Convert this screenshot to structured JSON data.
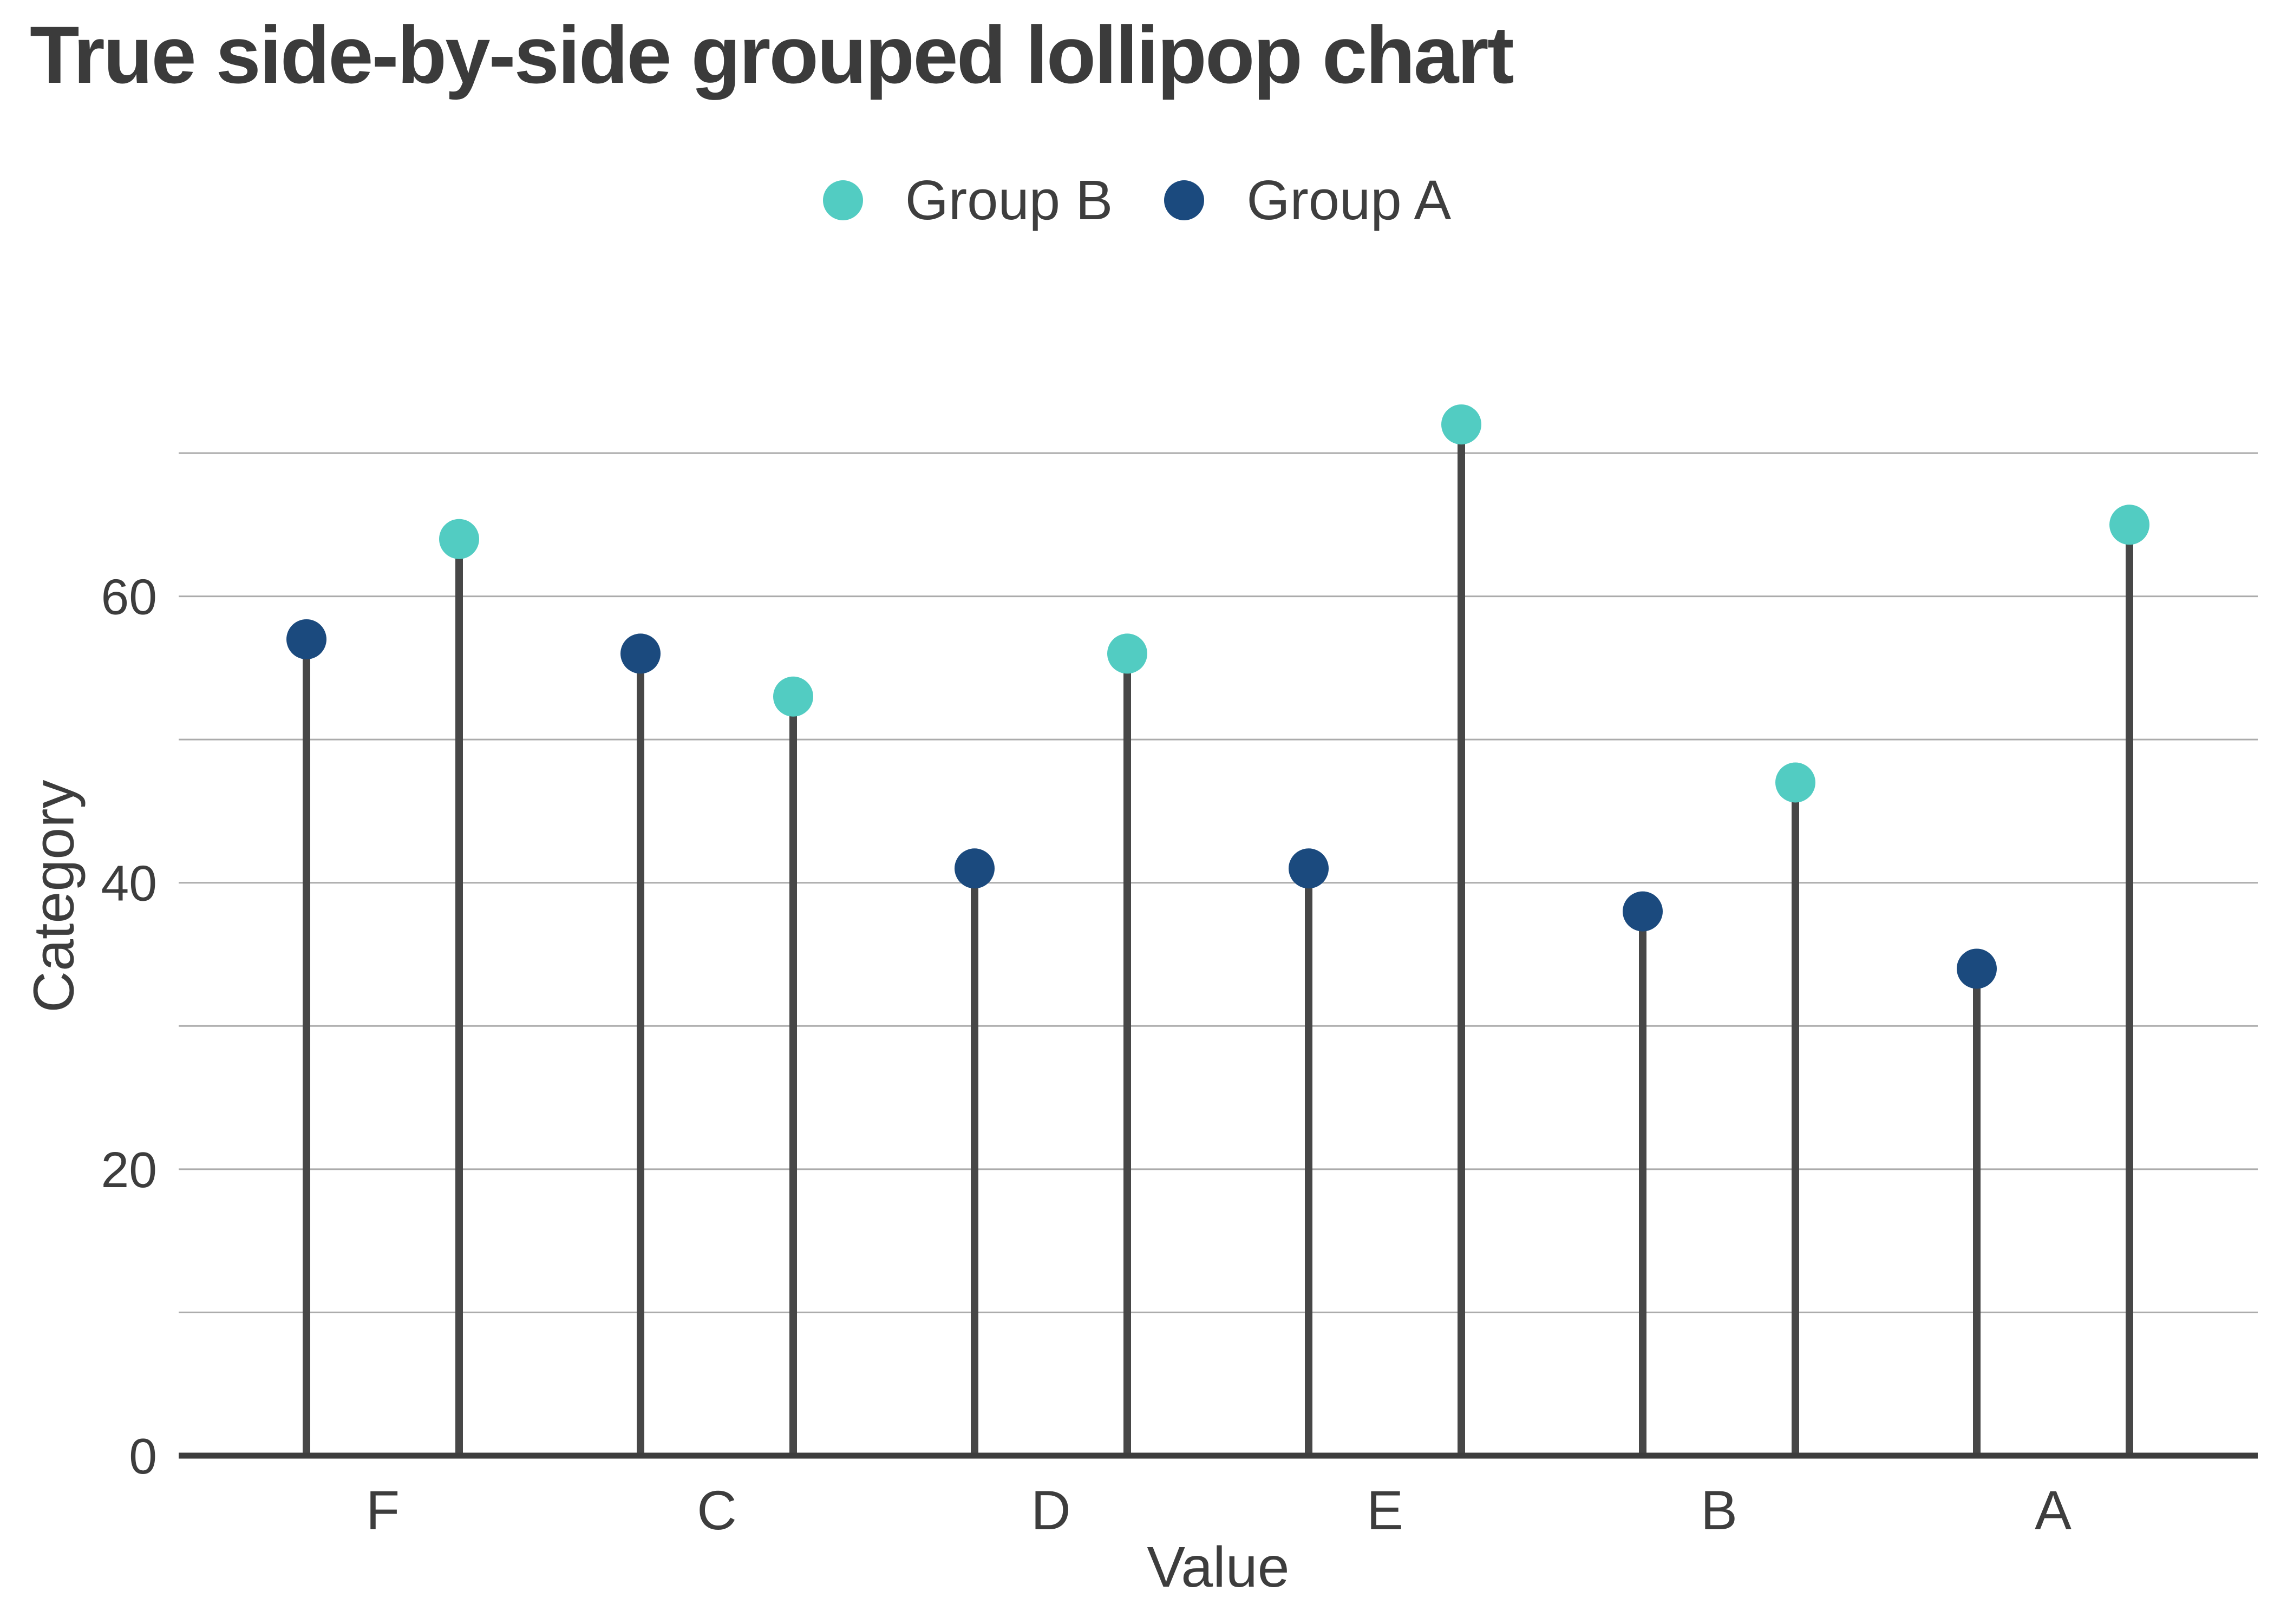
{
  "title": "True side-by-side grouped lollipop chart",
  "legend": {
    "items": [
      {
        "label": "Group B",
        "color": "#52ccc2"
      },
      {
        "label": "Group A",
        "color": "#1b4a7e"
      }
    ]
  },
  "chart_data": {
    "type": "lollipop",
    "subtype": "grouped side-by-side vertical lollipops",
    "title": "True side-by-side grouped lollipop chart",
    "categories": [
      "F",
      "C",
      "D",
      "E",
      "B",
      "A"
    ],
    "series": [
      {
        "name": "Group A",
        "color": "#1b4a7e",
        "values": [
          57,
          56,
          41,
          41,
          38,
          34
        ]
      },
      {
        "name": "Group B",
        "color": "#52ccc2",
        "values": [
          64,
          53,
          56,
          72,
          47,
          65
        ]
      }
    ],
    "xlabel": "Value",
    "ylabel": "Category",
    "y_ticks_labeled": [
      0,
      20,
      40,
      60
    ],
    "gridline_step": 10,
    "ylim": [
      0,
      73
    ],
    "grid": true,
    "legend_position": "top-center",
    "stem_color": "#474747",
    "baseline_color": "#3d3d3d",
    "gridline_color": "#ababab",
    "tick_label_color": "#3d3d3d"
  }
}
